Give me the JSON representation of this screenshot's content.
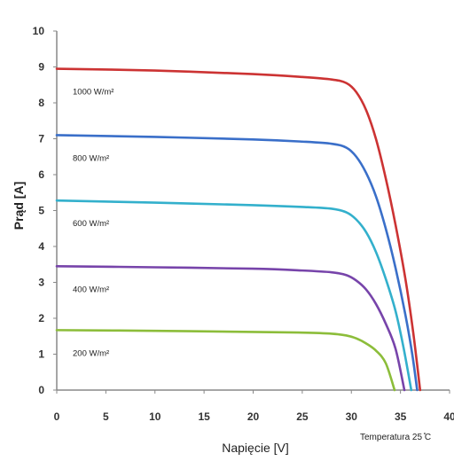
{
  "chart_data": {
    "type": "line",
    "xlabel": "Napięcie [V]",
    "ylabel": "Prąd [A]",
    "annotation": "Temperatura 25 ̊C",
    "xlim": [
      0,
      40
    ],
    "ylim": [
      0,
      10
    ],
    "x_ticks": [
      0,
      5,
      10,
      15,
      20,
      25,
      30,
      35,
      40
    ],
    "y_ticks": [
      0,
      1,
      2,
      3,
      4,
      5,
      6,
      7,
      8,
      9,
      10
    ],
    "grid": false,
    "series": [
      {
        "name": "1000 W/m²",
        "color": "#cc3333",
        "points": [
          [
            0,
            8.95
          ],
          [
            10,
            8.9
          ],
          [
            20,
            8.8
          ],
          [
            25,
            8.72
          ],
          [
            28,
            8.65
          ],
          [
            29.5,
            8.55
          ],
          [
            30.5,
            8.3
          ],
          [
            31.5,
            7.8
          ],
          [
            32.5,
            7.0
          ],
          [
            33.5,
            5.9
          ],
          [
            34.5,
            4.6
          ],
          [
            35.5,
            3.1
          ],
          [
            36.3,
            1.6
          ],
          [
            37,
            0
          ]
        ]
      },
      {
        "name": "800 W/m²",
        "color": "#3a6fc9",
        "points": [
          [
            0,
            7.1
          ],
          [
            10,
            7.05
          ],
          [
            20,
            6.98
          ],
          [
            25,
            6.92
          ],
          [
            28,
            6.86
          ],
          [
            29.5,
            6.75
          ],
          [
            30.5,
            6.5
          ],
          [
            31.5,
            6.05
          ],
          [
            32.5,
            5.4
          ],
          [
            33.5,
            4.5
          ],
          [
            34.5,
            3.4
          ],
          [
            35.5,
            2.1
          ],
          [
            36.2,
            1.0
          ],
          [
            36.7,
            0
          ]
        ]
      },
      {
        "name": "600 W/m²",
        "color": "#33b0cc",
        "points": [
          [
            0,
            5.28
          ],
          [
            10,
            5.22
          ],
          [
            20,
            5.15
          ],
          [
            25,
            5.1
          ],
          [
            28,
            5.05
          ],
          [
            29.5,
            4.95
          ],
          [
            30.5,
            4.75
          ],
          [
            31.5,
            4.4
          ],
          [
            32.5,
            3.85
          ],
          [
            33.5,
            3.1
          ],
          [
            34.5,
            2.2
          ],
          [
            35.3,
            1.2
          ],
          [
            36.1,
            0
          ]
        ]
      },
      {
        "name": "400 W/m²",
        "color": "#7744aa",
        "points": [
          [
            0,
            3.45
          ],
          [
            10,
            3.42
          ],
          [
            20,
            3.38
          ],
          [
            25,
            3.33
          ],
          [
            28,
            3.28
          ],
          [
            29.5,
            3.2
          ],
          [
            30.5,
            3.05
          ],
          [
            31.5,
            2.8
          ],
          [
            32.5,
            2.4
          ],
          [
            33.5,
            1.85
          ],
          [
            34.5,
            1.15
          ],
          [
            35.4,
            0
          ]
        ]
      },
      {
        "name": "200 W/m²",
        "color": "#8cbd3a",
        "points": [
          [
            0,
            1.67
          ],
          [
            10,
            1.65
          ],
          [
            20,
            1.62
          ],
          [
            25,
            1.6
          ],
          [
            28,
            1.57
          ],
          [
            29.5,
            1.52
          ],
          [
            30.5,
            1.44
          ],
          [
            31.5,
            1.3
          ],
          [
            32.5,
            1.1
          ],
          [
            33.5,
            0.75
          ],
          [
            34.4,
            0
          ]
        ]
      }
    ]
  }
}
